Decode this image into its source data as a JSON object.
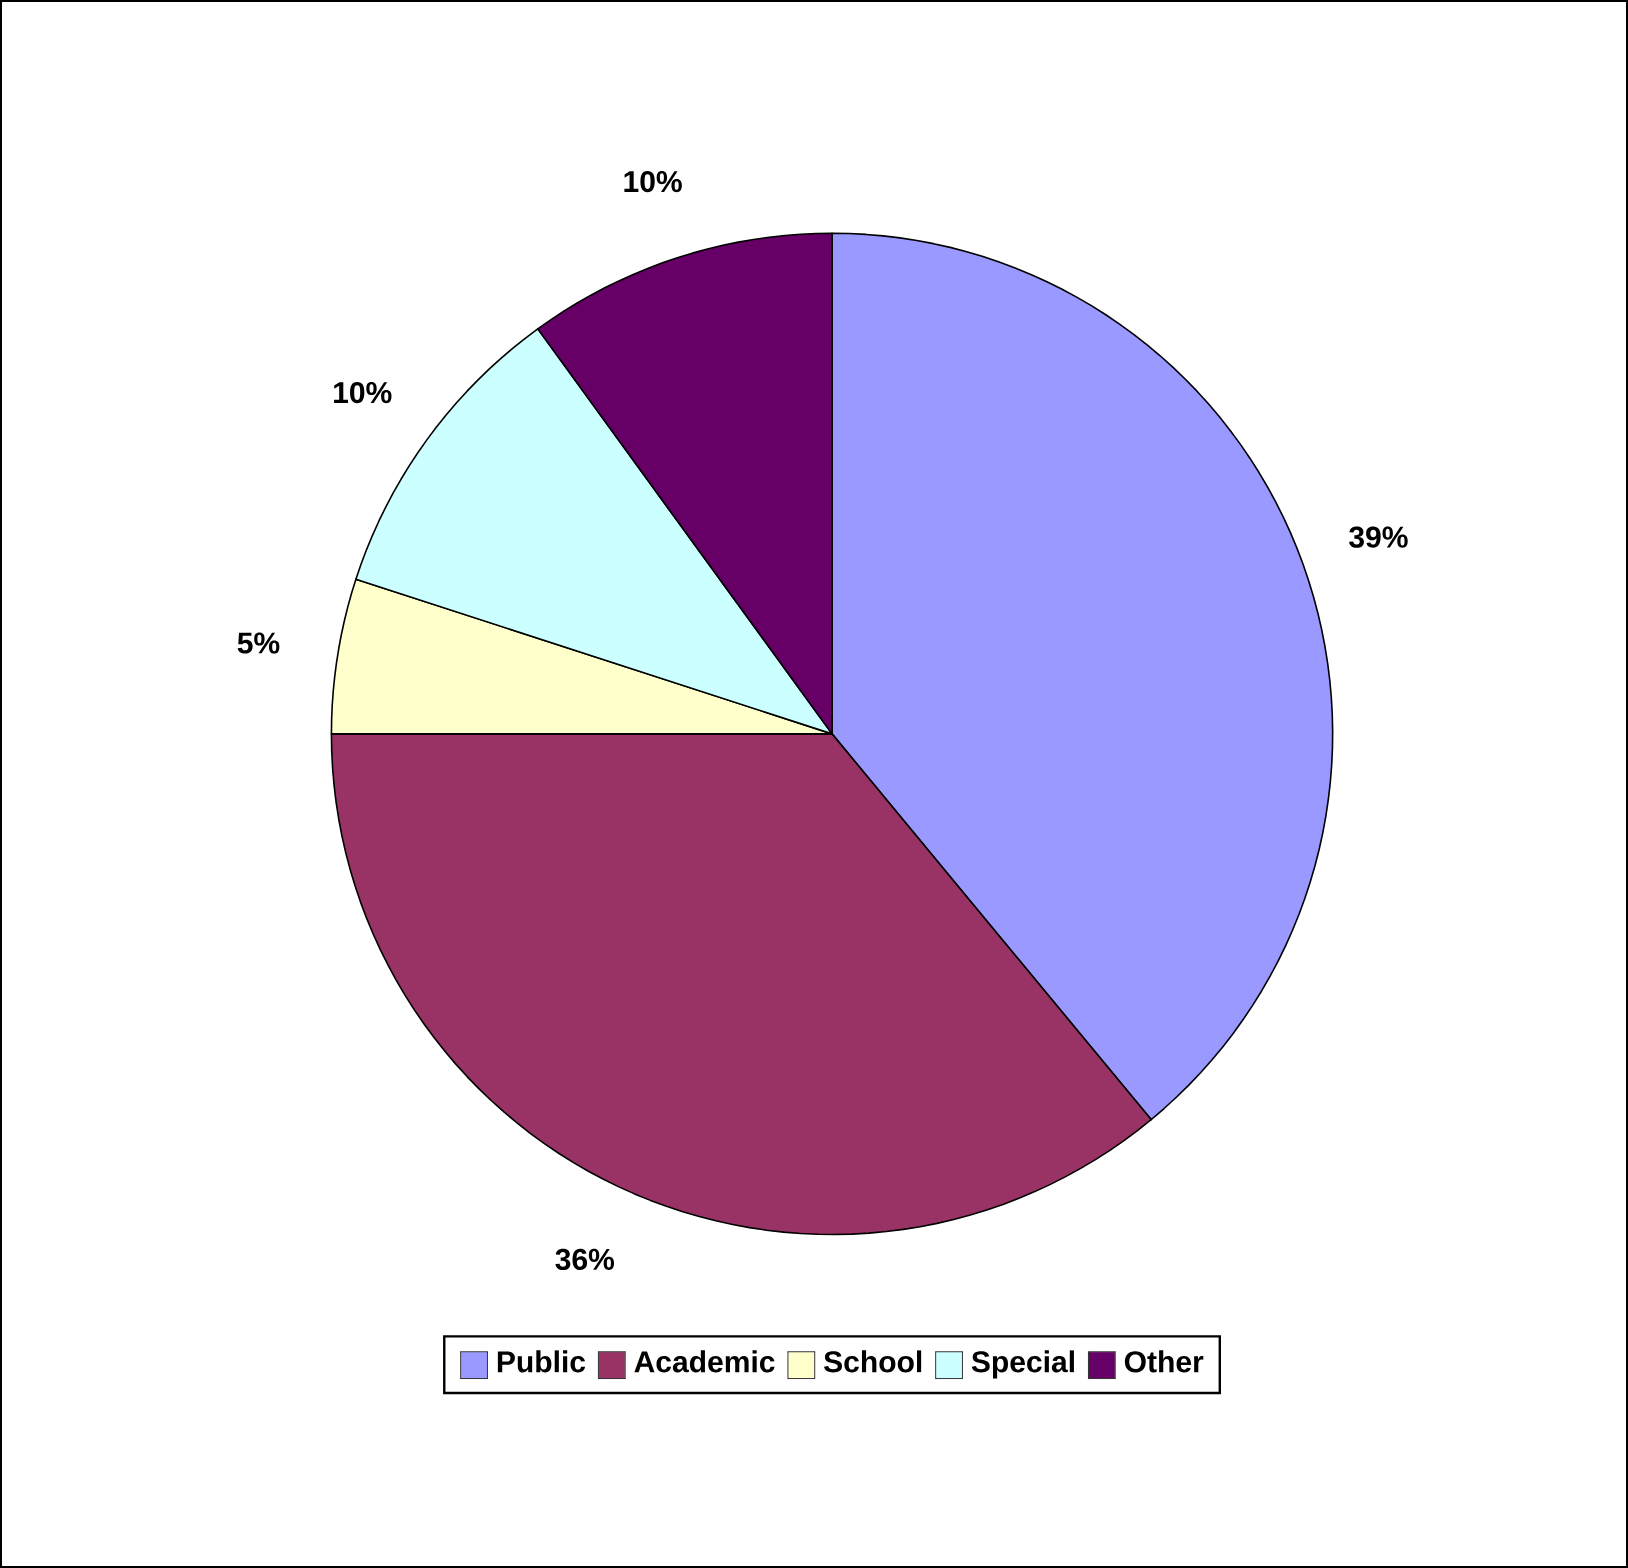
{
  "chart_data": {
    "type": "pie",
    "categories": [
      "Public",
      "Academic",
      "School",
      "Special",
      "Other"
    ],
    "values": [
      39,
      36,
      5,
      10,
      10
    ],
    "colors": [
      "#9999ff",
      "#993366",
      "#ffffcc",
      "#ccffff",
      "#660066"
    ],
    "value_labels": [
      "39%",
      "36%",
      "5%",
      "10%",
      "10%"
    ],
    "legend": "bottom"
  }
}
